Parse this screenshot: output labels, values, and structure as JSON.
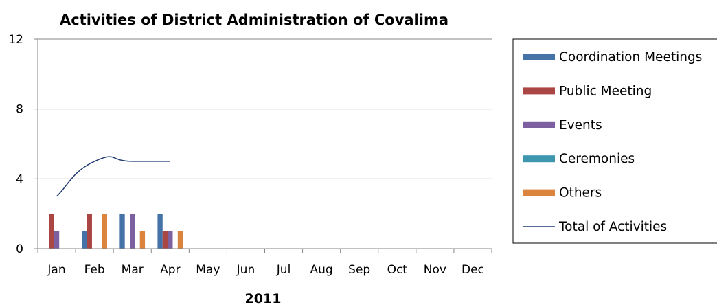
{
  "chart_data": {
    "type": "bar",
    "title": "Activities of District Administration of Covalima",
    "xlabel": "2011",
    "ylabel": "",
    "ylim": [
      0,
      12
    ],
    "yticks": [
      0,
      4,
      8,
      12
    ],
    "grid": true,
    "legend_position": "right",
    "categories": [
      "Jan",
      "Feb",
      "Mar",
      "Apr",
      "May",
      "Jun",
      "Jul",
      "Aug",
      "Sep",
      "Oct",
      "Nov",
      "Dec"
    ],
    "series": [
      {
        "name": "Coordination Meetings",
        "type": "bar",
        "color": "#4573A7",
        "values": [
          0,
          1,
          2,
          2,
          null,
          null,
          null,
          null,
          null,
          null,
          null,
          null
        ]
      },
      {
        "name": "Public Meeting",
        "type": "bar",
        "color": "#AA4643",
        "values": [
          2,
          2,
          0,
          1,
          null,
          null,
          null,
          null,
          null,
          null,
          null,
          null
        ]
      },
      {
        "name": "Events",
        "type": "bar",
        "color": "#7D60A0",
        "values": [
          1,
          0,
          2,
          1,
          null,
          null,
          null,
          null,
          null,
          null,
          null,
          null
        ]
      },
      {
        "name": "Ceremonies",
        "type": "bar",
        "color": "#3D96AE",
        "values": [
          0,
          0,
          0,
          0,
          null,
          null,
          null,
          null,
          null,
          null,
          null,
          null
        ]
      },
      {
        "name": "Others",
        "type": "bar",
        "color": "#DB843D",
        "values": [
          0,
          2,
          1,
          1,
          null,
          null,
          null,
          null,
          null,
          null,
          null,
          null
        ]
      },
      {
        "name": "Total of Activities",
        "type": "line",
        "color": "#1F3A73",
        "values": [
          3,
          5,
          5,
          5,
          null,
          null,
          null,
          null,
          null,
          null,
          null,
          null
        ]
      }
    ]
  }
}
